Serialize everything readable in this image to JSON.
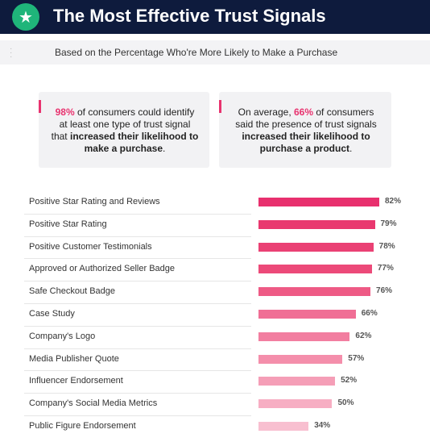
{
  "header": {
    "title": "The Most Effective Trust Signals",
    "logo_icon": "star-icon"
  },
  "subtitle": "Based on the Percentage Who're More Likely to Make a Purchase",
  "cards": [
    {
      "stat": "98%",
      "pre": "",
      "mid": " of consumers could identify at least one type of trust signal that ",
      "bold": "increased their likelihood to make a purchase",
      "post": "."
    },
    {
      "stat": "66%",
      "pre": "On average, ",
      "mid": " of consumers said the presence of trust signals ",
      "bold": "increased their likelihood to purchase a product",
      "post": "."
    }
  ],
  "chart_data": {
    "type": "bar",
    "orientation": "horizontal",
    "categories": [
      "Positive Star Rating and Reviews",
      "Positive Star Rating",
      "Positive Customer Testimonials",
      "Approved or Authorized Seller Badge",
      "Safe Checkout Badge",
      "Case Study",
      "Company's Logo",
      "Media Publisher Quote",
      "Influencer Endorsement",
      "Company's Social Media Metrics",
      "Public Figure Endorsement"
    ],
    "values": [
      82,
      79,
      78,
      77,
      76,
      66,
      62,
      57,
      52,
      50,
      34
    ],
    "value_labels": [
      "82%",
      "79%",
      "78%",
      "77%",
      "76%",
      "66%",
      "62%",
      "57%",
      "52%",
      "50%",
      "34%"
    ],
    "colors": [
      "#e8306e",
      "#e9386f",
      "#ea4174",
      "#ec4a79",
      "#ee5a85",
      "#f06e95",
      "#f27ea0",
      "#f48eab",
      "#f59eb7",
      "#f7aec3",
      "#f8bfd0"
    ],
    "grid": false,
    "legend": "none"
  }
}
